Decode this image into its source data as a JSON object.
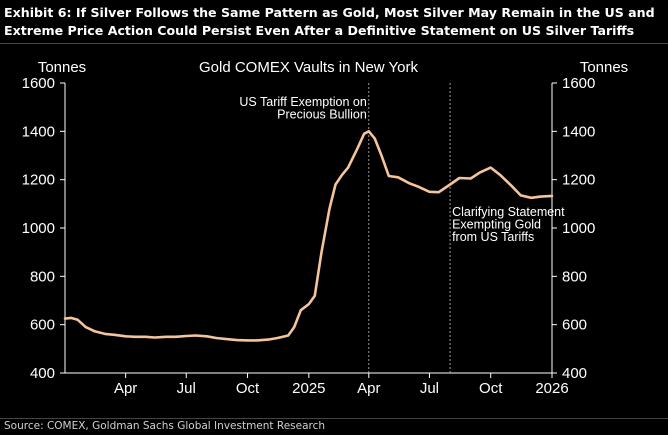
{
  "header": {
    "line1": "Exhibit 6: If Silver Follows the Same Pattern as Gold, Most Silver May Remain in the US and",
    "line2": "Extreme Price Action Could Persist Even After a Definitive Statement on US Silver Tariffs"
  },
  "source": "Source: COMEX, Goldman Sachs Global Investment Research",
  "chart_data": {
    "type": "line",
    "title": "Gold COMEX Vaults in New York",
    "ylabel_left": "Tonnes",
    "ylabel_right": "Tonnes",
    "ylim": [
      400,
      1600
    ],
    "yticks": [
      400,
      600,
      800,
      1000,
      1200,
      1400,
      1600
    ],
    "xlim": [
      "2024-01-01",
      "2026-01-01"
    ],
    "xticks": [
      {
        "date": "2024-04-01",
        "label": "Apr"
      },
      {
        "date": "2024-07-01",
        "label": "Jul"
      },
      {
        "date": "2024-10-01",
        "label": "Oct"
      },
      {
        "date": "2025-01-01",
        "label": "2025"
      },
      {
        "date": "2025-04-01",
        "label": "Apr"
      },
      {
        "date": "2025-07-01",
        "label": "Jul"
      },
      {
        "date": "2025-10-01",
        "label": "Oct"
      },
      {
        "date": "2026-01-01",
        "label": "2026"
      }
    ],
    "grid": false,
    "line_color": "#f4c49c",
    "series": [
      {
        "points": [
          [
            "2024-01-01",
            625
          ],
          [
            "2024-01-10",
            628
          ],
          [
            "2024-01-20",
            620
          ],
          [
            "2024-02-01",
            590
          ],
          [
            "2024-02-15",
            572
          ],
          [
            "2024-03-01",
            562
          ],
          [
            "2024-03-15",
            558
          ],
          [
            "2024-04-01",
            552
          ],
          [
            "2024-04-15",
            550
          ],
          [
            "2024-05-01",
            550
          ],
          [
            "2024-05-15",
            547
          ],
          [
            "2024-06-01",
            550
          ],
          [
            "2024-06-15",
            550
          ],
          [
            "2024-07-01",
            553
          ],
          [
            "2024-07-15",
            555
          ],
          [
            "2024-08-01",
            552
          ],
          [
            "2024-08-15",
            545
          ],
          [
            "2024-09-01",
            540
          ],
          [
            "2024-09-15",
            536
          ],
          [
            "2024-10-01",
            535
          ],
          [
            "2024-10-15",
            535
          ],
          [
            "2024-11-01",
            538
          ],
          [
            "2024-11-15",
            545
          ],
          [
            "2024-12-01",
            555
          ],
          [
            "2024-12-10",
            590
          ],
          [
            "2024-12-20",
            660
          ],
          [
            "2025-01-01",
            685
          ],
          [
            "2025-01-10",
            720
          ],
          [
            "2025-01-20",
            900
          ],
          [
            "2025-02-01",
            1080
          ],
          [
            "2025-02-10",
            1180
          ],
          [
            "2025-02-20",
            1220
          ],
          [
            "2025-03-01",
            1250
          ],
          [
            "2025-03-15",
            1330
          ],
          [
            "2025-03-25",
            1390
          ],
          [
            "2025-04-01",
            1400
          ],
          [
            "2025-04-10",
            1370
          ],
          [
            "2025-04-20",
            1300
          ],
          [
            "2025-05-01",
            1215
          ],
          [
            "2025-05-15",
            1210
          ],
          [
            "2025-06-01",
            1185
          ],
          [
            "2025-06-15",
            1170
          ],
          [
            "2025-07-01",
            1150
          ],
          [
            "2025-07-15",
            1148
          ],
          [
            "2025-08-01",
            1180
          ],
          [
            "2025-08-15",
            1207
          ],
          [
            "2025-09-01",
            1205
          ],
          [
            "2025-09-15",
            1230
          ],
          [
            "2025-10-01",
            1250
          ],
          [
            "2025-10-15",
            1220
          ],
          [
            "2025-11-01",
            1175
          ],
          [
            "2025-11-15",
            1135
          ],
          [
            "2025-12-01",
            1125
          ],
          [
            "2025-12-15",
            1130
          ],
          [
            "2026-01-01",
            1133
          ]
        ]
      }
    ],
    "annotations": [
      {
        "date": "2025-04-01",
        "lines": [
          "US Tariff Exemption on",
          "Precious Bullion"
        ],
        "anchor": "end"
      },
      {
        "date": "2025-08-01",
        "lines": [
          "Clarifying Statement",
          "Exempting Gold",
          "from US Tariffs"
        ],
        "anchor": "start"
      }
    ]
  }
}
